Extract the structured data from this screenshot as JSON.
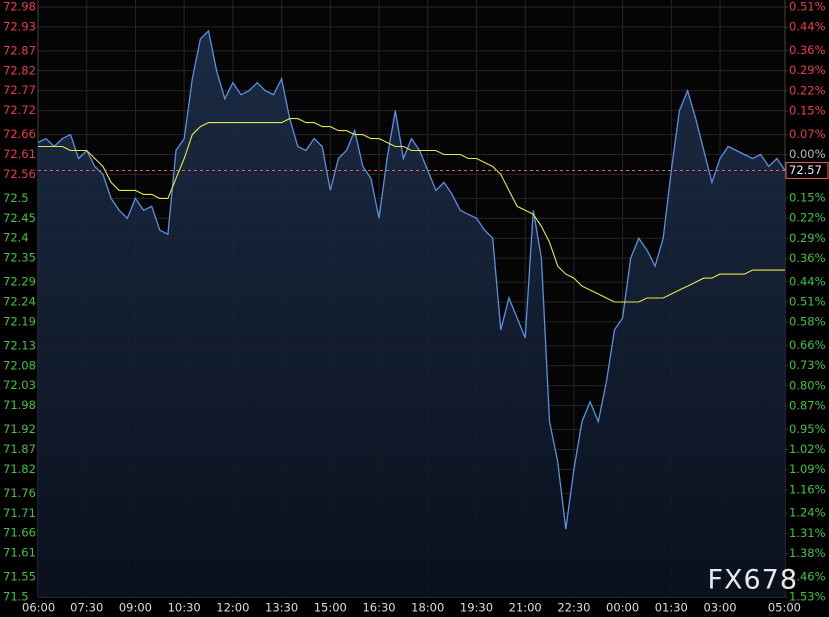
{
  "chart_data": {
    "type": "line",
    "x": [
      "06:00",
      "06:15",
      "06:30",
      "06:45",
      "07:00",
      "07:15",
      "07:30",
      "07:45",
      "08:00",
      "08:15",
      "08:30",
      "08:45",
      "09:00",
      "09:15",
      "09:30",
      "09:45",
      "10:00",
      "10:15",
      "10:30",
      "10:45",
      "11:00",
      "11:15",
      "11:30",
      "11:45",
      "12:00",
      "12:15",
      "12:30",
      "12:45",
      "13:00",
      "13:15",
      "13:30",
      "13:45",
      "14:00",
      "14:15",
      "14:30",
      "14:45",
      "15:00",
      "15:15",
      "15:30",
      "15:45",
      "16:00",
      "16:15",
      "16:30",
      "16:45",
      "17:00",
      "17:15",
      "17:30",
      "17:45",
      "18:00",
      "18:15",
      "18:30",
      "18:45",
      "19:00",
      "19:15",
      "19:30",
      "19:45",
      "20:00",
      "20:15",
      "20:30",
      "20:45",
      "21:00",
      "21:15",
      "21:30",
      "21:45",
      "22:00",
      "22:15",
      "22:30",
      "22:45",
      "23:00",
      "23:15",
      "23:30",
      "23:45",
      "00:00",
      "00:15",
      "00:30",
      "00:45",
      "01:00",
      "01:15",
      "01:30",
      "01:45",
      "02:00",
      "02:15",
      "02:30",
      "02:45",
      "03:00",
      "03:15",
      "03:30",
      "03:45",
      "04:00",
      "04:15",
      "04:30",
      "04:45",
      "05:00"
    ],
    "series": [
      {
        "color": "#5b8fe0",
        "fill": true,
        "values": [
          72.64,
          72.65,
          72.63,
          72.65,
          72.66,
          72.6,
          72.62,
          72.58,
          72.56,
          72.5,
          72.47,
          72.45,
          72.5,
          72.47,
          72.48,
          72.42,
          72.41,
          72.62,
          72.65,
          72.8,
          72.9,
          72.92,
          72.82,
          72.75,
          72.79,
          72.76,
          72.77,
          72.79,
          72.77,
          72.76,
          72.8,
          72.7,
          72.63,
          72.62,
          72.65,
          72.63,
          72.52,
          72.6,
          72.62,
          72.67,
          72.58,
          72.55,
          72.45,
          72.6,
          72.72,
          72.6,
          72.65,
          72.62,
          72.57,
          72.52,
          72.54,
          72.51,
          72.47,
          72.46,
          72.45,
          72.42,
          72.4,
          72.17,
          72.25,
          72.2,
          72.15,
          72.47,
          72.35,
          71.94,
          71.84,
          71.67,
          71.82,
          71.94,
          71.99,
          71.94,
          72.04,
          72.17,
          72.2,
          72.35,
          72.4,
          72.37,
          72.33,
          72.4,
          72.57,
          72.72,
          72.77,
          72.7,
          72.62,
          72.54,
          72.6,
          72.63,
          72.62,
          72.61,
          72.6,
          72.61,
          72.58,
          72.6,
          72.57
        ]
      },
      {
        "color": "#e6e64a",
        "fill": false,
        "values": [
          72.63,
          72.63,
          72.63,
          72.63,
          72.62,
          72.62,
          72.62,
          72.6,
          72.58,
          72.54,
          72.52,
          72.52,
          72.52,
          72.51,
          72.51,
          72.5,
          72.5,
          72.55,
          72.6,
          72.66,
          72.68,
          72.69,
          72.69,
          72.69,
          72.69,
          72.69,
          72.69,
          72.69,
          72.69,
          72.69,
          72.69,
          72.7,
          72.7,
          72.69,
          72.69,
          72.68,
          72.68,
          72.67,
          72.67,
          72.66,
          72.66,
          72.65,
          72.65,
          72.64,
          72.63,
          72.63,
          72.62,
          72.62,
          72.62,
          72.62,
          72.61,
          72.61,
          72.61,
          72.6,
          72.6,
          72.59,
          72.58,
          72.56,
          72.52,
          72.48,
          72.47,
          72.46,
          72.43,
          72.39,
          72.33,
          72.31,
          72.3,
          72.28,
          72.27,
          72.26,
          72.25,
          72.24,
          72.24,
          72.24,
          72.24,
          72.25,
          72.25,
          72.25,
          72.26,
          72.27,
          72.28,
          72.29,
          72.3,
          72.3,
          72.31,
          72.31,
          72.31,
          72.31,
          72.32,
          72.32,
          72.32,
          72.32,
          72.32
        ]
      }
    ],
    "xticks": [
      "06:00",
      "07:30",
      "09:00",
      "10:30",
      "12:00",
      "13:30",
      "15:00",
      "16:30",
      "18:00",
      "19:30",
      "21:00",
      "22:30",
      "00:00",
      "01:30",
      "03:00",
      "05:00"
    ],
    "ylim": [
      71.5,
      72.98
    ],
    "yticks": [
      72.98,
      72.93,
      72.87,
      72.82,
      72.77,
      72.72,
      72.66,
      72.61,
      72.56,
      72.5,
      72.45,
      72.4,
      72.35,
      72.29,
      72.24,
      72.19,
      72.13,
      72.08,
      72.03,
      71.98,
      71.92,
      71.87,
      71.82,
      71.76,
      71.71,
      71.66,
      71.61,
      71.55,
      71.5
    ],
    "ytick_colors": [
      "#e84040",
      "#e84040",
      "#e84040",
      "#e84040",
      "#e84040",
      "#e84040",
      "#e84040",
      "#e84040",
      "#e84040",
      "#3fc43f",
      "#3fc43f",
      "#3fc43f",
      "#3fc43f",
      "#3fc43f",
      "#3fc43f",
      "#3fc43f",
      "#3fc43f",
      "#3fc43f",
      "#3fc43f",
      "#3fc43f",
      "#3fc43f",
      "#3fc43f",
      "#3fc43f",
      "#3fc43f",
      "#3fc43f",
      "#3fc43f",
      "#3fc43f",
      "#3fc43f",
      "#3fc43f"
    ],
    "y2lim": [
      -1.53,
      0.51
    ],
    "y2ticks": [
      {
        "value": 0.51,
        "label": "0.51%"
      },
      {
        "value": 0.44,
        "label": "0.44%"
      },
      {
        "value": 0.36,
        "label": "0.36%"
      },
      {
        "value": 0.29,
        "label": "0.29%"
      },
      {
        "value": 0.22,
        "label": "0.22%"
      },
      {
        "value": 0.15,
        "label": "0.15%"
      },
      {
        "value": 0.07,
        "label": "0.07%"
      },
      {
        "value": 0,
        "label": "0.00%"
      },
      {
        "value": -0.15,
        "label": "0.15%"
      },
      {
        "value": -0.22,
        "label": "0.22%"
      },
      {
        "value": -0.29,
        "label": "0.29%"
      },
      {
        "value": -0.36,
        "label": "0.36%"
      },
      {
        "value": -0.44,
        "label": "0.44%"
      },
      {
        "value": -0.51,
        "label": "0.51%"
      },
      {
        "value": -0.58,
        "label": "0.58%"
      },
      {
        "value": -0.66,
        "label": "0.66%"
      },
      {
        "value": -0.73,
        "label": "0.73%"
      },
      {
        "value": -0.8,
        "label": "0.80%"
      },
      {
        "value": -0.87,
        "label": "0.87%"
      },
      {
        "value": -0.95,
        "label": "0.95%"
      },
      {
        "value": -1.02,
        "label": "1.02%"
      },
      {
        "value": -1.09,
        "label": "1.09%"
      },
      {
        "value": -1.16,
        "label": "1.16%"
      },
      {
        "value": -1.24,
        "label": "1.24%"
      },
      {
        "value": -1.31,
        "label": "1.31%"
      },
      {
        "value": -1.38,
        "label": "1.38%"
      },
      {
        "value": -1.46,
        "label": "1.46%"
      },
      {
        "value": -1.53,
        "label": "1.53%"
      }
    ],
    "up_color": "#e84040",
    "down_color": "#3fc43f",
    "flat_color": "#bbbbbb",
    "last_price": 72.57,
    "last_price_color": "#e06060",
    "grid": true,
    "watermark": "FX678"
  }
}
